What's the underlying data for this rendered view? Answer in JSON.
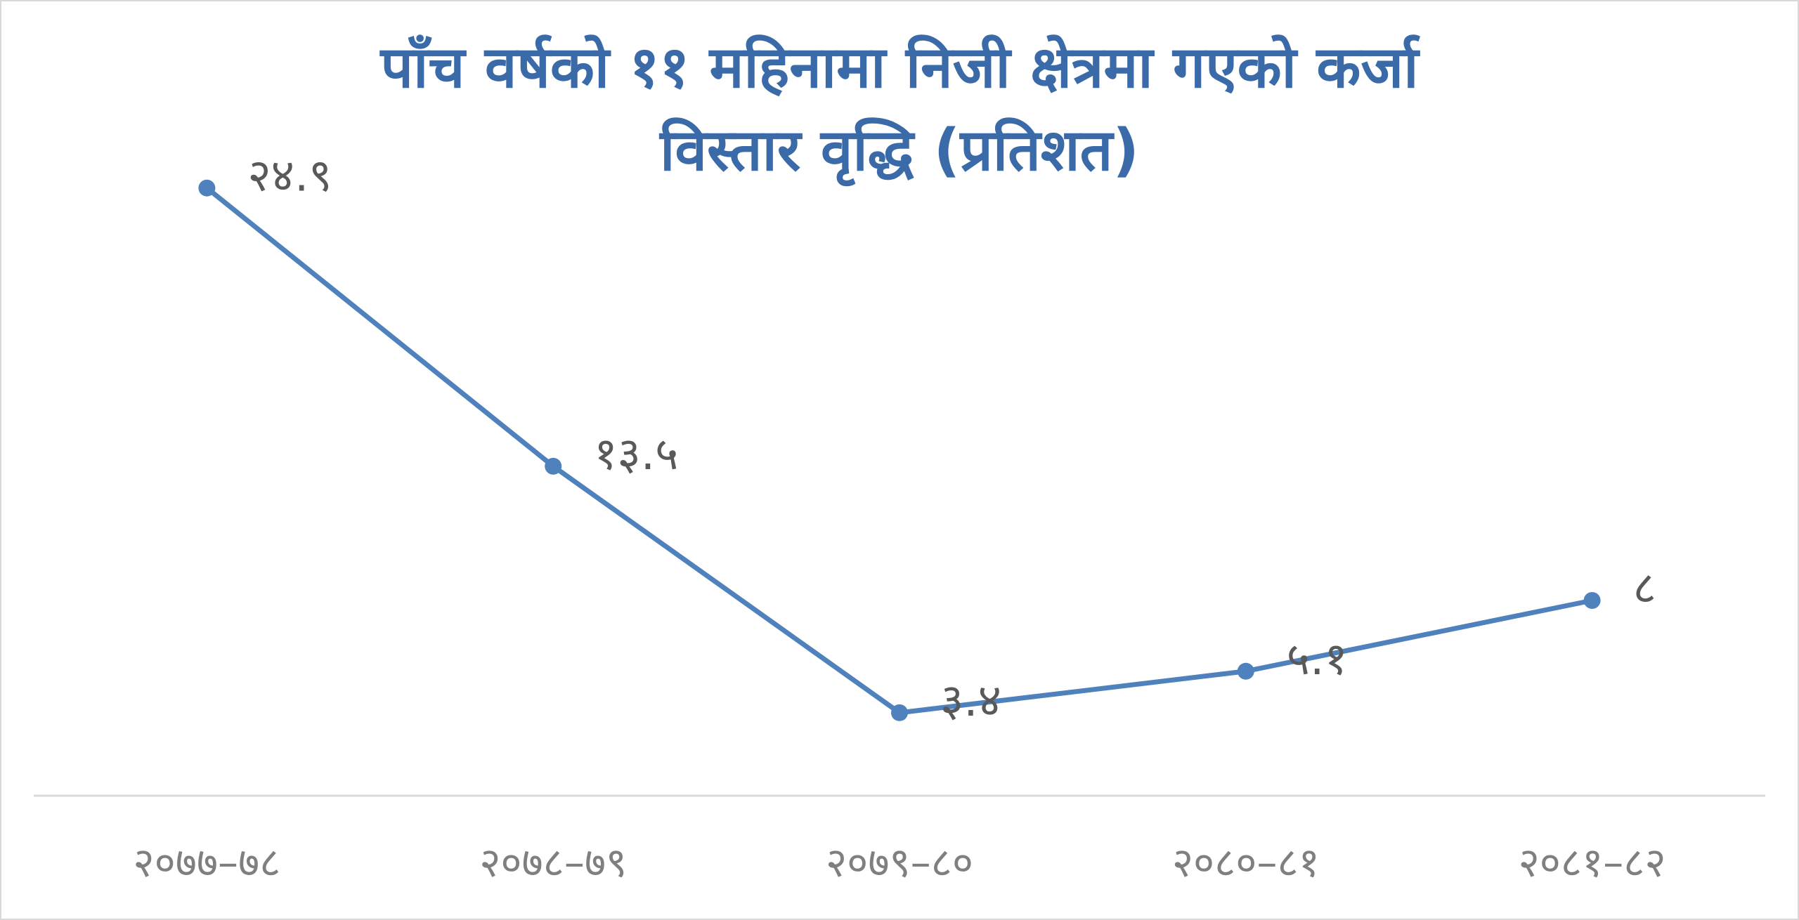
{
  "chart_data": {
    "type": "line",
    "title_line1": "पाँच वर्षको ११ महिनामा निजी क्षेत्रमा गएको कर्जा",
    "title_line2": "विस्तार वृद्धि (प्रतिशत)",
    "categories": [
      "२०७७–७८",
      "२०७८–७९",
      "२०७९–८०",
      "२०८०–८१",
      "२०८१–८२"
    ],
    "values": [
      24.9,
      13.5,
      3.4,
      5.1,
      8
    ],
    "data_labels": [
      "२४.९",
      "१३.५",
      "३.४",
      "५.१",
      "८"
    ],
    "ylim": [
      0,
      28
    ],
    "grid": false,
    "legend": "none",
    "colors": {
      "line": "#4f81bd",
      "title": "#3a6aa8",
      "axis": "#d9d9d9"
    }
  }
}
